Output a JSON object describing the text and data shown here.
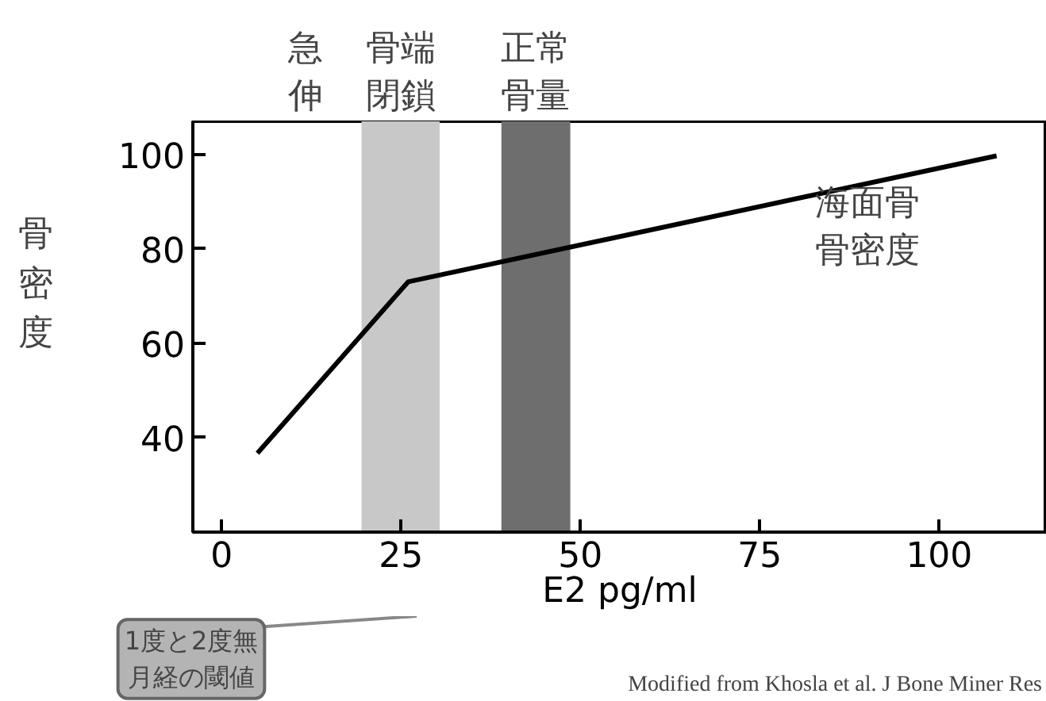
{
  "chart_data": {
    "type": "line",
    "xlabel": "E2 pg/ml",
    "ylabel": "骨密度",
    "xlim": [
      -4,
      115
    ],
    "xticks": [
      0,
      25,
      50,
      75,
      100
    ],
    "ylim": [
      20,
      107
    ],
    "yticks": [
      40,
      60,
      80,
      100
    ],
    "series": [
      {
        "name": "海面骨骨密度",
        "color": "#000000",
        "x": [
          5,
          26,
          108
        ],
        "values": [
          36.7,
          73,
          99.7
        ]
      }
    ],
    "bands": [
      {
        "axis": "x",
        "from": 19.5,
        "to": 30.4,
        "label": "骨端閉鎖",
        "color": "#c8c8c8"
      },
      {
        "axis": "x",
        "from": 39,
        "to": 48.6,
        "label": "正常骨量",
        "color": "#6e6e6e"
      }
    ],
    "annotations": [
      "急伸",
      "1度と2度無月経の閾値",
      "Modified from Khosla et al. J Bone Miner Res"
    ],
    "grid": false,
    "marker": "none",
    "line_style": "solid"
  }
}
